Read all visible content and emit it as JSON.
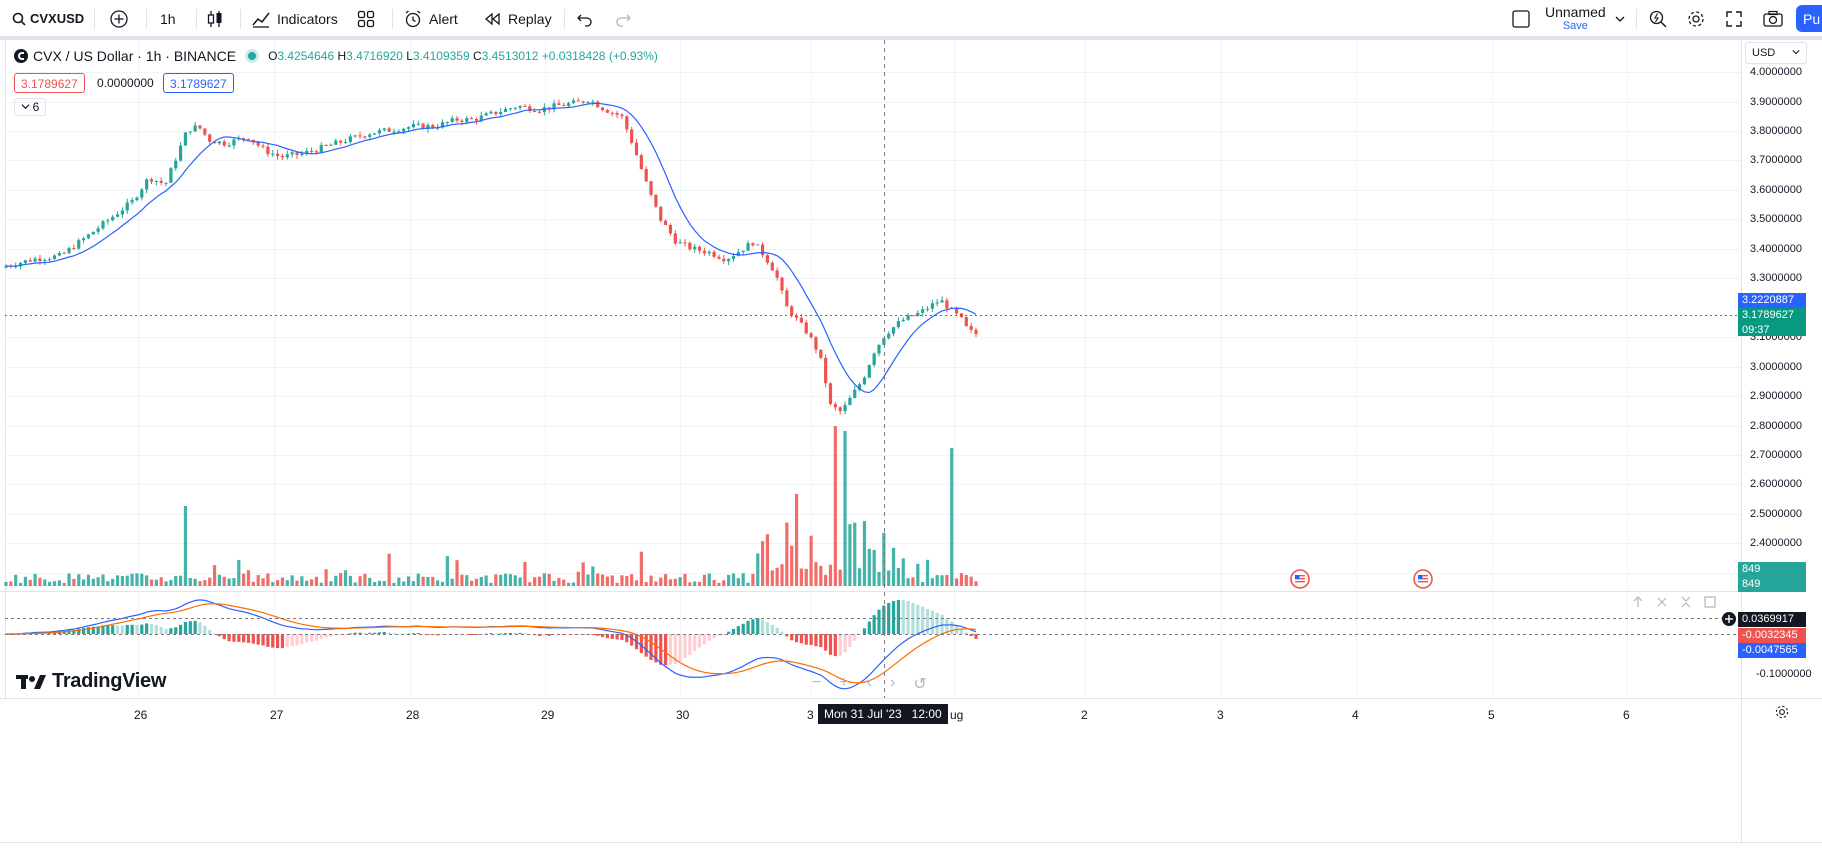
{
  "toolbar": {
    "symbol": "CVXUSD",
    "interval": "1h",
    "indicators_label": "Indicators",
    "alert_label": "Alert",
    "replay_label": "Replay",
    "layout_name": "Unnamed",
    "save_label": "Save",
    "publish_label": "Pu"
  },
  "legend": {
    "title": "CVX / US Dollar · 1h · BINANCE",
    "o_label": "O",
    "o": "3.4254646",
    "h_label": "H",
    "h": "3.4716920",
    "l_label": "L",
    "l": "3.4109359",
    "c_label": "C",
    "c": "3.4513012",
    "change": "+0.0318428 (+0.93%)",
    "sell_price": "3.1789627",
    "spread": "0.0000000",
    "buy_price": "3.1789627",
    "collapse_count": "6"
  },
  "price_axis": {
    "currency": "USD",
    "labels": [
      "4.0000000",
      "3.9000000",
      "3.8000000",
      "3.7000000",
      "3.6000000",
      "3.5000000",
      "3.4000000",
      "3.3000000",
      "3.1000000",
      "3.0000000",
      "2.9000000",
      "2.8000000",
      "2.7000000",
      "2.6000000",
      "2.5000000",
      "2.4000000",
      "0.1000000"
    ],
    "ma_tag": "3.2220887",
    "last_tag": "3.1789627",
    "countdown": "09:37",
    "volume_tag_1": "849",
    "volume_tag_2": "849",
    "macd_tag_1": "0.0369917",
    "macd_tag_2": "-0.0032345",
    "macd_tag_3": "-0.0047565",
    "macd_low_label": "-0.1000000"
  },
  "time_axis": {
    "labels": [
      "26",
      "27",
      "28",
      "29",
      "30",
      "3",
      "ug",
      "2",
      "3",
      "4",
      "5",
      "6"
    ],
    "crosshair_label": "Mon 31 Jul '23   12:00"
  },
  "branding": {
    "logo_text": "TradingView"
  },
  "colors": {
    "up": "#26a69a",
    "down": "#ef5350",
    "ma": "#2962ff",
    "macd": "#2962ff",
    "signal": "#ff6d00",
    "accent": "#2962ff"
  }
}
